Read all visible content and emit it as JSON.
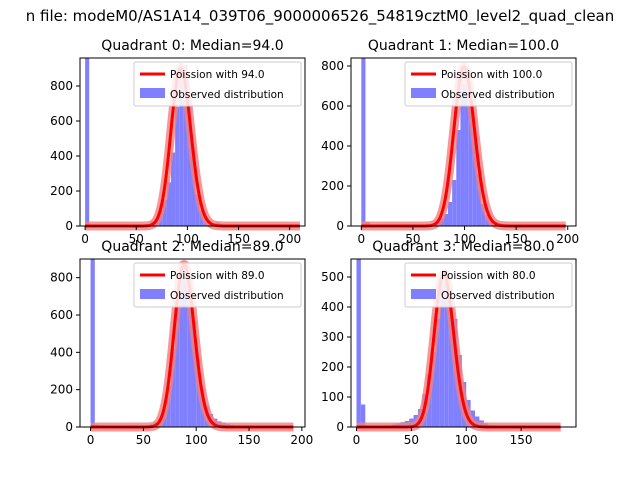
{
  "figure": {
    "suptitle": "n file: modeM0/AS1A14_039T06_9000006526_54819cztM0_level2_quad_clean"
  },
  "colors": {
    "fit_line": "#ff0000",
    "fit_band": "#f08080",
    "histogram": "#8080ff",
    "axes": "#000000",
    "background": "#ffffff"
  },
  "chart_data": [
    {
      "type": "bar",
      "title": "Quadrant 0: Median=94.0",
      "median": 94.0,
      "xlim": [
        -5,
        215
      ],
      "ylim": [
        0,
        960
      ],
      "xticks": [
        0,
        50,
        100,
        150,
        200
      ],
      "yticks": [
        0,
        200,
        400,
        600,
        800
      ],
      "legend": {
        "location": "top-right",
        "entries": [
          "Poission with 94.0",
          "Observed distribution"
        ]
      },
      "series": [
        {
          "name": "Observed distribution",
          "kind": "histogram",
          "bin_width": 4,
          "bins": [
            [
              0,
              960
            ],
            [
              4,
              8
            ],
            [
              48,
              2
            ],
            [
              56,
              4
            ],
            [
              60,
              10
            ],
            [
              64,
              25
            ],
            [
              68,
              40
            ],
            [
              72,
              90
            ],
            [
              76,
              150
            ],
            [
              80,
              250
            ],
            [
              84,
              420
            ],
            [
              88,
              680
            ],
            [
              92,
              930
            ],
            [
              96,
              920
            ],
            [
              100,
              700
            ],
            [
              104,
              450
            ],
            [
              108,
              180
            ],
            [
              112,
              90
            ],
            [
              116,
              50
            ],
            [
              120,
              22
            ],
            [
              124,
              14
            ],
            [
              128,
              20
            ],
            [
              132,
              10
            ],
            [
              136,
              6
            ],
            [
              140,
              4
            ],
            [
              144,
              2
            ]
          ]
        },
        {
          "name": "Poission with 94.0",
          "kind": "poisson",
          "mean": 94.0,
          "peak": 900,
          "x_range": [
            0,
            210
          ]
        }
      ]
    },
    {
      "type": "bar",
      "title": "Quadrant 1: Median=100.0",
      "median": 100.0,
      "xlim": [
        -10,
        208
      ],
      "ylim": [
        0,
        840
      ],
      "xticks": [
        0,
        50,
        100,
        150,
        200
      ],
      "yticks": [
        0,
        200,
        400,
        600,
        800
      ],
      "legend": {
        "location": "top-right",
        "entries": [
          "Poission with 100.0",
          "Observed distribution"
        ]
      },
      "series": [
        {
          "name": "Observed distribution",
          "kind": "histogram",
          "bin_width": 4,
          "bins": [
            [
              0,
              840
            ],
            [
              4,
              20
            ],
            [
              60,
              3
            ],
            [
              64,
              5
            ],
            [
              68,
              10
            ],
            [
              72,
              25
            ],
            [
              76,
              40
            ],
            [
              80,
              60
            ],
            [
              84,
              120
            ],
            [
              88,
              230
            ],
            [
              92,
              480
            ],
            [
              96,
              710
            ],
            [
              100,
              790
            ],
            [
              104,
              690
            ],
            [
              108,
              470
            ],
            [
              112,
              260
            ],
            [
              116,
              110
            ],
            [
              120,
              55
            ],
            [
              124,
              30
            ],
            [
              128,
              20
            ],
            [
              132,
              12
            ],
            [
              136,
              6
            ],
            [
              140,
              4
            ],
            [
              144,
              2
            ],
            [
              148,
              1
            ]
          ]
        },
        {
          "name": "Poission with 100.0",
          "kind": "poisson",
          "mean": 100.0,
          "peak": 795,
          "x_range": [
            0,
            198
          ]
        }
      ]
    },
    {
      "type": "bar",
      "title": "Quadrant 2: Median=89.0",
      "median": 89.0,
      "xlim": [
        -10,
        203
      ],
      "ylim": [
        0,
        900
      ],
      "xticks": [
        0,
        50,
        100,
        150,
        200
      ],
      "yticks": [
        0,
        200,
        400,
        600,
        800
      ],
      "legend": {
        "location": "top-right",
        "entries": [
          "Poission with 89.0",
          "Observed distribution"
        ]
      },
      "series": [
        {
          "name": "Observed distribution",
          "kind": "histogram",
          "bin_width": 4,
          "bins": [
            [
              0,
              900
            ],
            [
              4,
              12
            ],
            [
              44,
              2
            ],
            [
              48,
              4
            ],
            [
              52,
              8
            ],
            [
              56,
              15
            ],
            [
              60,
              25
            ],
            [
              64,
              45
            ],
            [
              68,
              100
            ],
            [
              72,
              220
            ],
            [
              76,
              420
            ],
            [
              80,
              650
            ],
            [
              84,
              860
            ],
            [
              88,
              880
            ],
            [
              92,
              760
            ],
            [
              96,
              560
            ],
            [
              100,
              360
            ],
            [
              104,
              200
            ],
            [
              108,
              110
            ],
            [
              112,
              70
            ],
            [
              116,
              45
            ],
            [
              120,
              30
            ],
            [
              124,
              22
            ],
            [
              128,
              15
            ],
            [
              132,
              10
            ],
            [
              136,
              8
            ],
            [
              140,
              5
            ],
            [
              144,
              3
            ],
            [
              148,
              2
            ]
          ]
        },
        {
          "name": "Poission with 89.0",
          "kind": "poisson",
          "mean": 89.0,
          "peak": 870,
          "x_range": [
            0,
            192
          ]
        }
      ]
    },
    {
      "type": "bar",
      "title": "Quadrant 3: Median=80.0",
      "median": 80.0,
      "xlim": [
        -5,
        200
      ],
      "ylim": [
        0,
        560
      ],
      "xticks": [
        0,
        50,
        100,
        150
      ],
      "yticks": [
        0,
        100,
        200,
        300,
        400,
        500
      ],
      "legend": {
        "location": "top-right",
        "entries": [
          "Poission with 80.0",
          "Observed distribution"
        ]
      },
      "series": [
        {
          "name": "Observed distribution",
          "kind": "histogram",
          "bin_width": 4,
          "bins": [
            [
              0,
              560
            ],
            [
              4,
              75
            ],
            [
              24,
              3
            ],
            [
              28,
              5
            ],
            [
              32,
              8
            ],
            [
              36,
              12
            ],
            [
              40,
              16
            ],
            [
              44,
              20
            ],
            [
              48,
              28
            ],
            [
              52,
              40
            ],
            [
              56,
              60
            ],
            [
              60,
              110
            ],
            [
              64,
              175
            ],
            [
              68,
              250
            ],
            [
              72,
              360
            ],
            [
              76,
              470
            ],
            [
              80,
              510
            ],
            [
              84,
              460
            ],
            [
              88,
              360
            ],
            [
              92,
              240
            ],
            [
              96,
              150
            ],
            [
              100,
              90
            ],
            [
              104,
              55
            ],
            [
              108,
              35
            ],
            [
              112,
              22
            ],
            [
              116,
              12
            ],
            [
              120,
              6
            ],
            [
              124,
              3
            ]
          ]
        },
        {
          "name": "Poission with 80.0",
          "kind": "poisson",
          "mean": 80.0,
          "peak": 510,
          "x_range": [
            0,
            186
          ]
        }
      ]
    }
  ]
}
